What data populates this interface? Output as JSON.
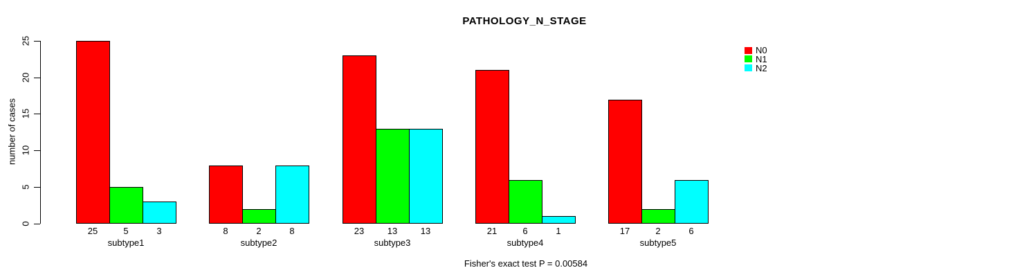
{
  "title": "PATHOLOGY_N_STAGE",
  "footer": "Fisher's exact test P = 0.00584",
  "y_axis": {
    "label": "number of cases",
    "ticks": [
      "0",
      "5",
      "10",
      "15",
      "20",
      "25"
    ],
    "tick_values": [
      0,
      5,
      10,
      15,
      20,
      25
    ]
  },
  "legend": {
    "position": "right",
    "entries": [
      {
        "label": "N0",
        "color": "#FF0000"
      },
      {
        "label": "N1",
        "color": "#00FF00"
      },
      {
        "label": "N2",
        "color": "#00FFFF"
      }
    ]
  },
  "chart_data": {
    "type": "bar",
    "title": "PATHOLOGY_N_STAGE",
    "xlabel": "",
    "ylabel": "number of cases",
    "ylim": [
      0,
      25
    ],
    "grid": false,
    "legend_position": "right",
    "categories": [
      "subtype1",
      "subtype2",
      "subtype3",
      "subtype4",
      "subtype5"
    ],
    "series": [
      {
        "name": "N0",
        "color": "#FF0000",
        "values": [
          25,
          8,
          23,
          21,
          17
        ]
      },
      {
        "name": "N1",
        "color": "#00FF00",
        "values": [
          5,
          2,
          13,
          6,
          2
        ]
      },
      {
        "name": "N2",
        "color": "#00FFFF",
        "values": [
          3,
          8,
          13,
          1,
          6
        ]
      }
    ],
    "bar_value_labels_shown": true,
    "annotation": "Fisher's exact test P = 0.00584"
  }
}
